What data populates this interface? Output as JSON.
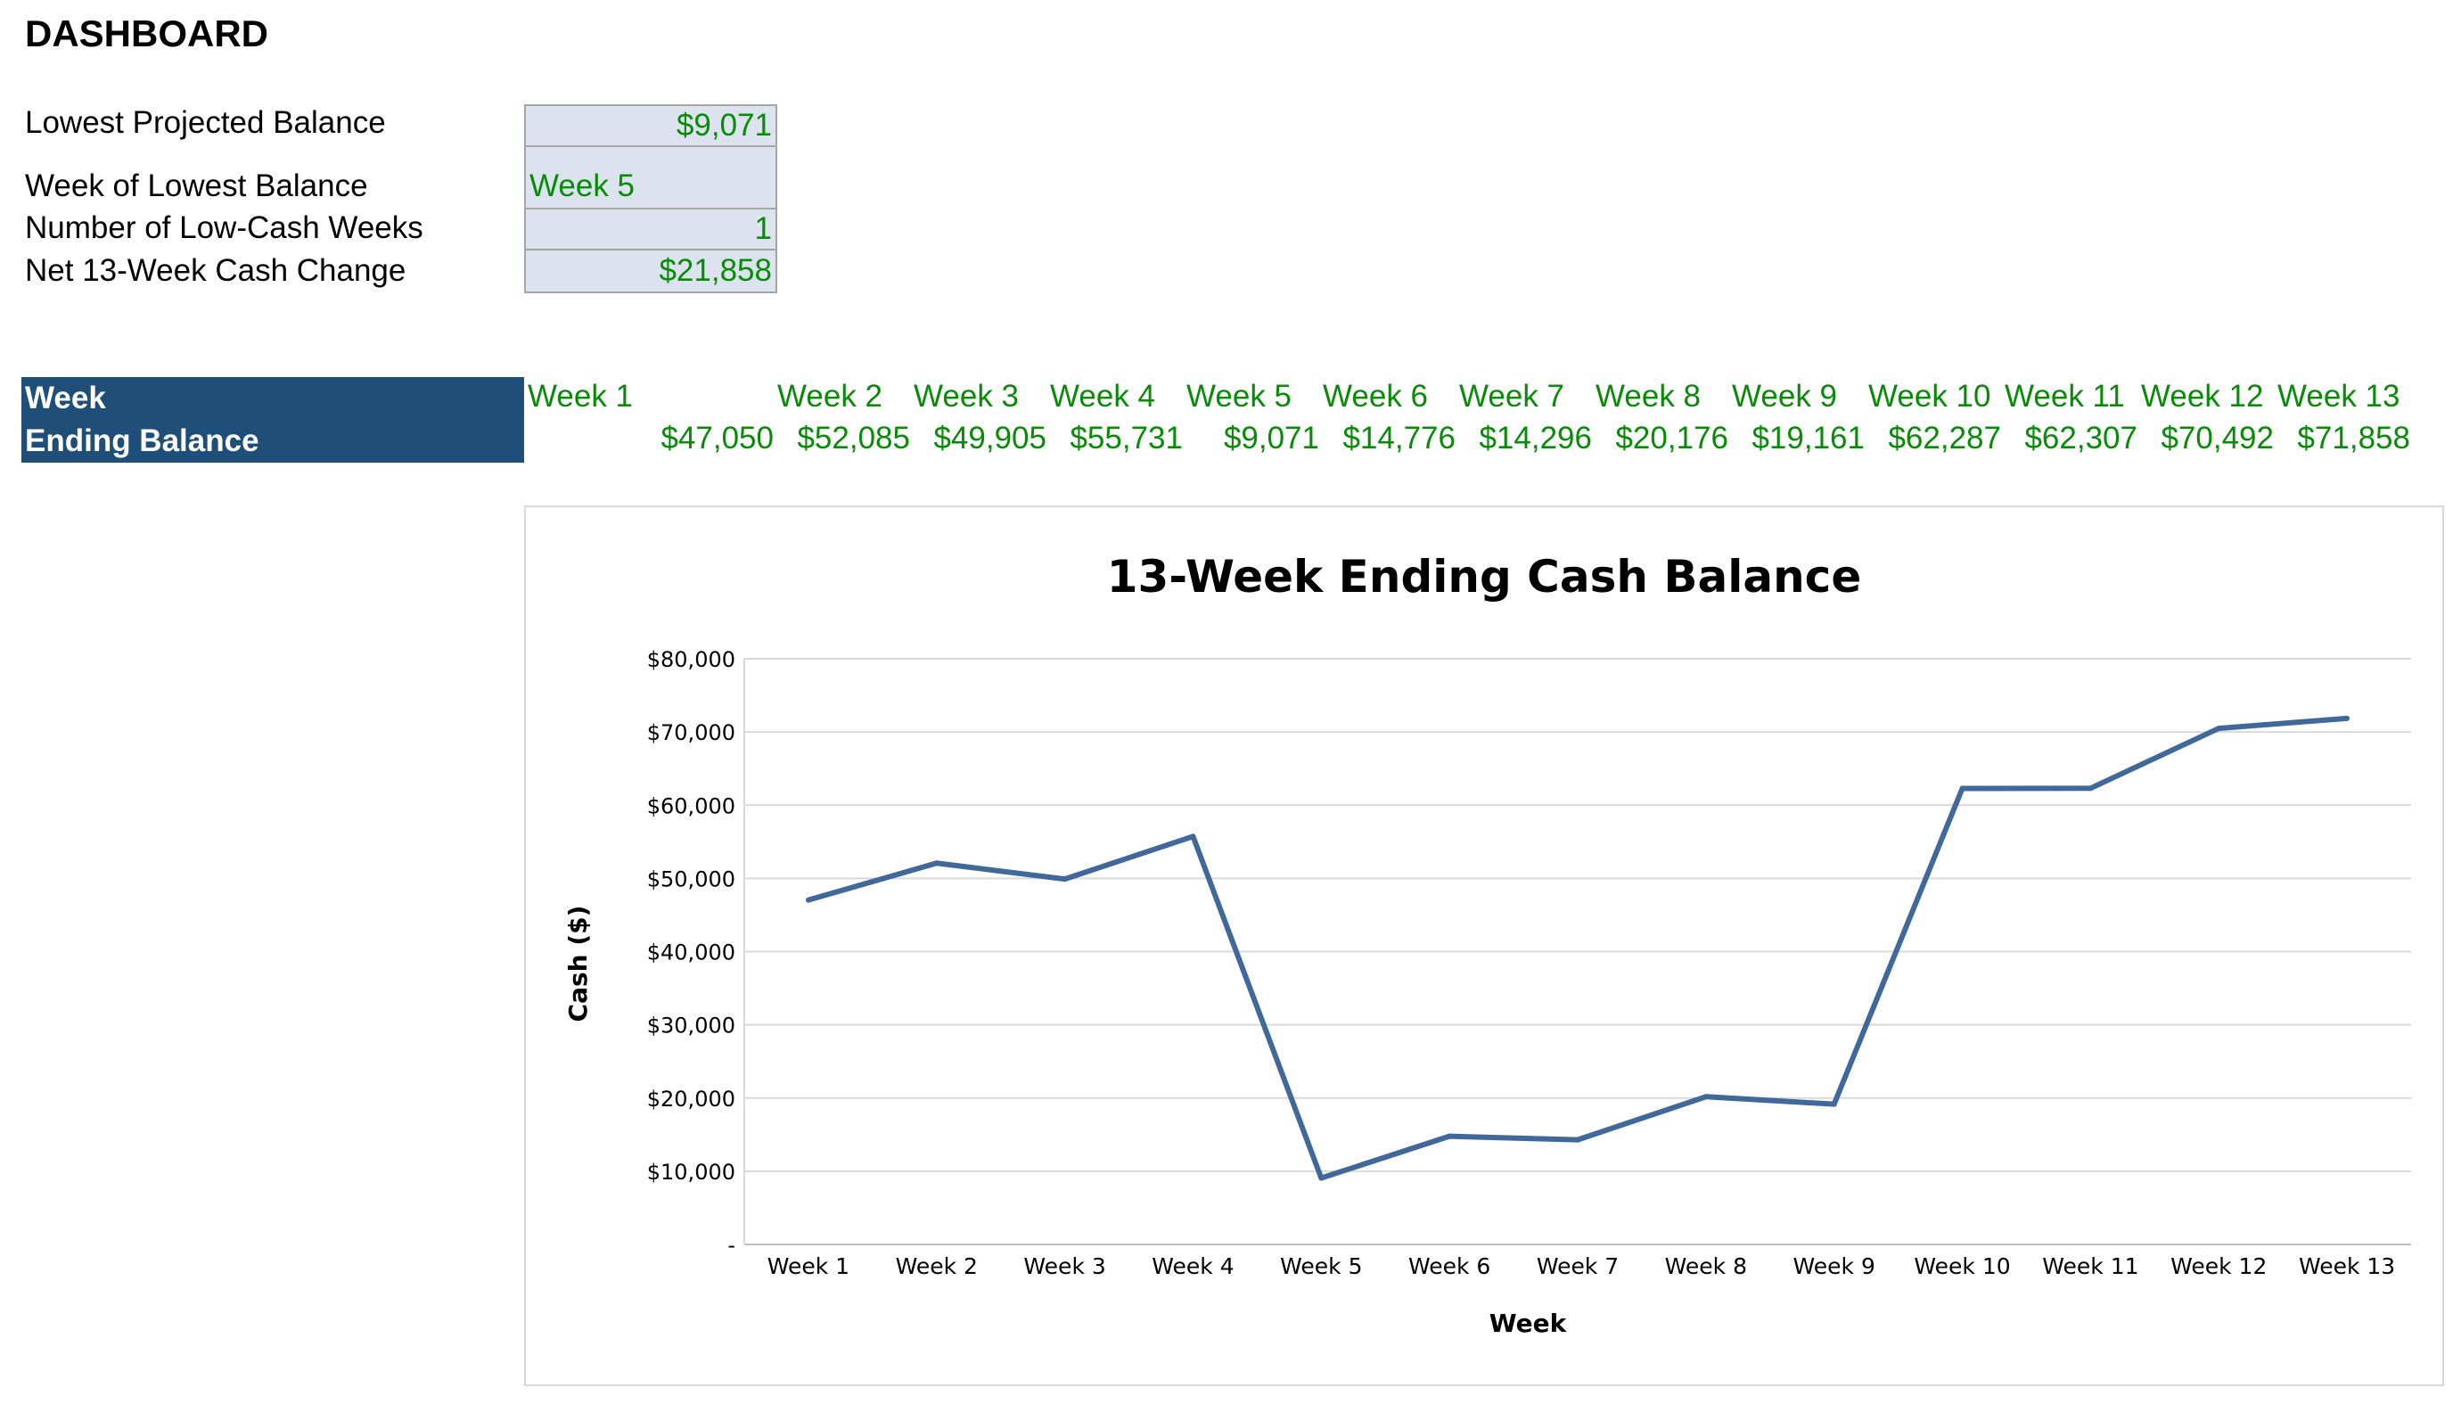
{
  "dashboard": {
    "title": "DASHBOARD",
    "kpis": [
      {
        "label": "Lowest Projected Balance",
        "value": "$9,071"
      },
      {
        "label": "Week of Lowest Balance",
        "value": "Week 5"
      },
      {
        "label": "Number of Low-Cash Weeks",
        "value": "1"
      },
      {
        "label": "Net 13-Week Cash Change",
        "value": "$21,858"
      }
    ]
  },
  "table": {
    "week_header": "Week",
    "balance_header": "Ending Balance",
    "weeks": [
      "Week 1",
      "Week 2",
      "Week 3",
      "Week 4",
      "Week 5",
      "Week 6",
      "Week 7",
      "Week 8",
      "Week 9",
      "Week 10",
      "Week 11",
      "Week 12",
      "Week 13"
    ],
    "balances": [
      "$47,050",
      "$52,085",
      "$49,905",
      "$55,731",
      "$9,071",
      "$14,776",
      "$14,296",
      "$20,176",
      "$19,161",
      "$62,287",
      "$62,307",
      "$70,492",
      "$71,858"
    ]
  },
  "colors": {
    "header_bg": "#1f4e79",
    "value_text": "#088c08",
    "kpi_cell_bg": "#dce3ef",
    "line": "#41689a"
  },
  "chart_data": {
    "type": "line",
    "title": "13-Week Ending Cash Balance",
    "xlabel": "Week",
    "ylabel": "Cash ($)",
    "categories": [
      "Week 1",
      "Week 2",
      "Week 3",
      "Week 4",
      "Week 5",
      "Week 6",
      "Week 7",
      "Week 8",
      "Week 9",
      "Week 10",
      "Week 11",
      "Week 12",
      "Week 13"
    ],
    "values": [
      47050,
      52085,
      49905,
      55731,
      9071,
      14776,
      14296,
      20176,
      19161,
      62287,
      62307,
      70492,
      71858
    ],
    "ylim": [
      0,
      80000
    ],
    "yticks": [
      0,
      10000,
      20000,
      30000,
      40000,
      50000,
      60000,
      70000,
      80000
    ],
    "ytick_labels": [
      "-",
      "$10,000",
      "$20,000",
      "$30,000",
      "$40,000",
      "$50,000",
      "$60,000",
      "$70,000",
      "$80,000"
    ],
    "grid": true,
    "legend": "none"
  }
}
